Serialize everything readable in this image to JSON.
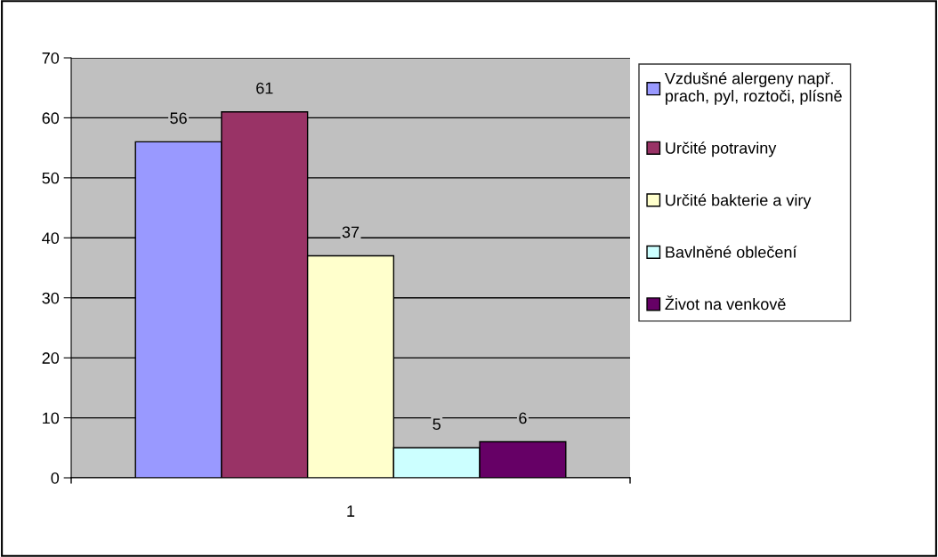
{
  "chart_data": {
    "type": "bar",
    "categories": [
      "1"
    ],
    "series": [
      {
        "name": "Vzdušné alergeny např.\nprach, pyl, roztoči, plísně",
        "color": "#9999ff",
        "values": [
          56
        ]
      },
      {
        "name": "Určité potraviny",
        "color": "#993366",
        "values": [
          61
        ]
      },
      {
        "name": "Určité bakterie a viry",
        "color": "#ffffcc",
        "values": [
          37
        ]
      },
      {
        "name": "Bavlněné oblečení",
        "color": "#ccffff",
        "values": [
          5
        ]
      },
      {
        "name": "Život na venkově",
        "color": "#660066",
        "values": [
          6
        ]
      }
    ],
    "ylim": [
      0,
      70
    ],
    "yticks": [
      0,
      10,
      20,
      30,
      40,
      50,
      60,
      70
    ],
    "grid": "y",
    "legend": "right",
    "data_labels": true
  }
}
